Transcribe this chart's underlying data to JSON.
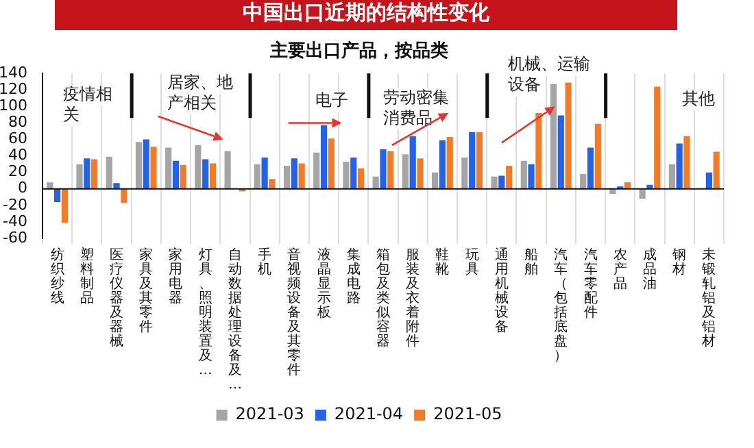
{
  "chart_data": {
    "type": "bar",
    "title": "中国出口近期的结构性变化",
    "subtitle": "主要出口产品，按品类",
    "categories": [
      "纺织纱线",
      "塑料制品",
      "医疗仪器及器械",
      "家具及其零件",
      "家用电器",
      "灯具、照明装置及…",
      "自动数据处理设备及…",
      "手机",
      "音视频设备及其零件",
      "液晶显示板",
      "集成电路",
      "箱包及类似容器",
      "服装及衣着附件",
      "鞋靴",
      "玩具",
      "通用机械设备",
      "船舶",
      "汽车（包括底盘）",
      "汽车零配件",
      "农产品",
      "成品油",
      "钢材",
      "未锻轧铝及铝材"
    ],
    "series": [
      {
        "name": "2021-03",
        "color": "#a5a5a5",
        "values": [
          8,
          30,
          39,
          57,
          50,
          53,
          46,
          30,
          28,
          44,
          33,
          15,
          42,
          20,
          38,
          15,
          34,
          127,
          18,
          -6,
          -12,
          30,
          null
        ]
      },
      {
        "name": "2021-04",
        "color": "#2462e8",
        "values": [
          -16,
          37,
          7,
          60,
          34,
          36,
          null,
          38,
          37,
          77,
          38,
          48,
          64,
          59,
          69,
          16,
          30,
          89,
          50,
          3,
          5,
          55,
          20
        ]
      },
      {
        "name": "2021-05",
        "color": "#f07c2a",
        "values": [
          -41,
          36,
          -17,
          51,
          29,
          31,
          -3,
          12,
          31,
          61,
          25,
          46,
          37,
          63,
          69,
          28,
          92,
          129,
          79,
          8,
          124,
          64,
          45
        ]
      }
    ],
    "ylim": [
      -60,
      140
    ],
    "yticks": [
      -60,
      -40,
      -20,
      0,
      20,
      40,
      60,
      80,
      100,
      120,
      140
    ],
    "grid": "x",
    "legend": "bottom",
    "annotations": [
      "疫情相关",
      "居家、地产相关",
      "电子",
      "劳动密集消费品",
      "机械、运输设备",
      "其他"
    ]
  }
}
